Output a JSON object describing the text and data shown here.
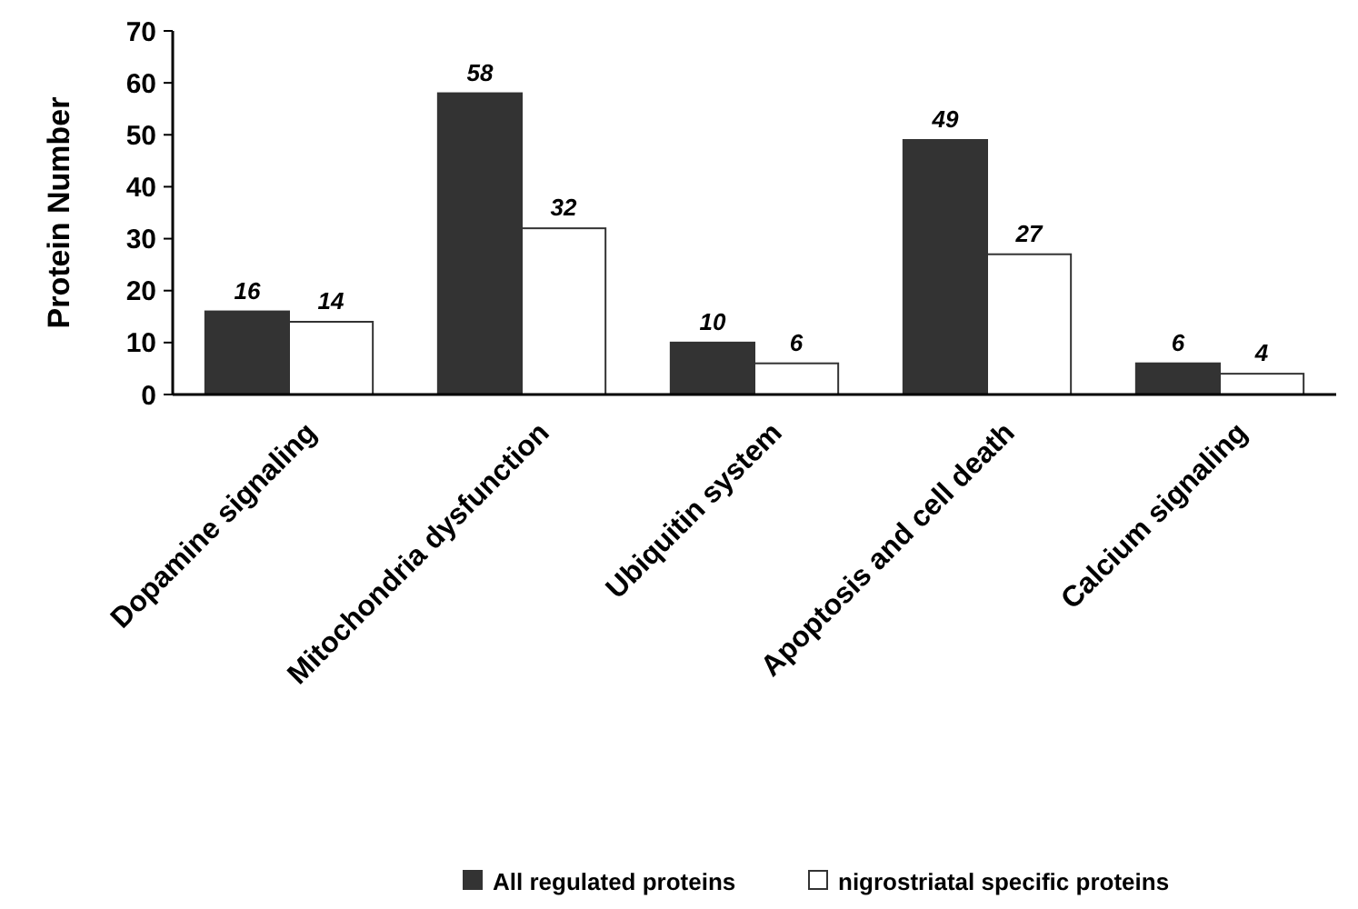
{
  "chart_data": {
    "type": "bar",
    "ylabel": "Protein Number",
    "categories": [
      "Dopamine signaling",
      "Mitochondria dysfunction",
      "Ubiquitin system",
      "Apoptosis and cell death",
      "Calcium signaling"
    ],
    "series": [
      {
        "name": "All regulated proteins",
        "color": "#333333",
        "values": [
          16,
          58,
          10,
          49,
          6
        ]
      },
      {
        "name": "nigrostriatal specific proteins",
        "color": "#ffffff",
        "values": [
          14,
          32,
          6,
          27,
          4
        ]
      }
    ],
    "ylim": [
      0,
      70
    ],
    "yticks": [
      0,
      10,
      20,
      30,
      40,
      50,
      60,
      70
    ],
    "data_labels": true,
    "legend": "bottom",
    "grid": false
  }
}
